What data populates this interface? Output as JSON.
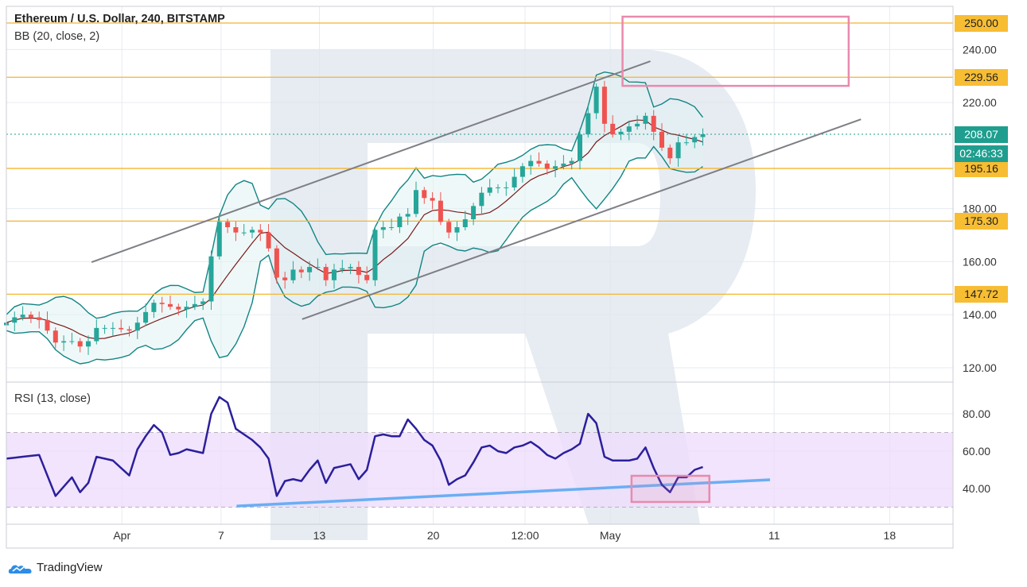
{
  "header": {
    "title": "Ethereum / U.S. Dollar, 240, BITSTAMP",
    "bb_label": "BB (20, close, 2)",
    "rsi_label": "RSI (13, close)"
  },
  "branding": {
    "name": "TradingView",
    "icon": "tradingview-cloud-icon"
  },
  "colors": {
    "up": "#26a69a",
    "down": "#ef5350",
    "bb": "#138484",
    "basis": "#7a1a1a",
    "level": "#f5b52e",
    "rsi": "#2b1f9c",
    "rsi_trend": "#6aaef5",
    "box": "#e88aad",
    "current": "#1f9e8f"
  },
  "chart_data": [
    {
      "type": "candlestick",
      "title": "Ethereum / U.S. Dollar, 240, BITSTAMP",
      "ylim": [
        110,
        258
      ],
      "interval_note": "closes sampled per half-day",
      "closes": [
        137,
        139,
        140,
        139,
        138,
        134,
        129.5,
        130,
        130,
        128,
        130,
        135,
        135,
        135,
        134.5,
        134,
        137,
        141,
        144.5,
        144,
        143,
        142,
        143,
        144,
        145,
        162,
        175,
        173,
        171,
        171,
        172,
        171,
        165,
        154,
        153,
        157,
        156,
        158,
        158,
        153,
        157,
        157.5,
        158,
        155,
        153,
        172,
        173,
        173,
        177,
        178,
        187,
        184,
        183,
        175,
        171,
        173,
        176,
        181,
        186,
        188,
        188,
        188,
        192,
        196,
        198,
        197,
        195,
        196,
        197,
        198,
        208,
        216,
        226,
        212,
        208,
        209,
        211,
        212,
        215,
        209,
        203,
        199,
        205,
        205,
        207,
        208.07
      ],
      "price_ticks": [
        240,
        220,
        180,
        160,
        140,
        120
      ],
      "levels": [
        {
          "value": 250.0,
          "label": "250.00"
        },
        {
          "value": 229.56,
          "label": "229.56"
        },
        {
          "value": 195.16,
          "label": "195.16"
        },
        {
          "value": 175.3,
          "label": "175.30"
        },
        {
          "value": 147.72,
          "label": "147.72"
        }
      ],
      "current": {
        "value": 208.07,
        "label": "208.07",
        "countdown": "02:46:33"
      },
      "indicator": {
        "name": "Bollinger Bands",
        "period": 20,
        "source": "close",
        "stddev": 2
      },
      "channel": [
        {
          "name": "upper",
          "from": [
            10.4,
            159.8
          ],
          "to": [
            78.6,
            235.6
          ]
        },
        {
          "name": "lower",
          "from": [
            36.1,
            138.3
          ],
          "to": [
            104.3,
            213.7
          ]
        }
      ],
      "target_box": {
        "from_index": 75.2,
        "to_index": 102.8,
        "top": 252.4,
        "bottom": 226.3
      },
      "x_ticks": [
        {
          "label": "Apr",
          "index": 14.1
        },
        {
          "label": "7",
          "index": 26.2
        },
        {
          "label": "13",
          "index": 38.2
        },
        {
          "label": "20",
          "index": 52.1
        },
        {
          "label": "12:00",
          "index": 63.3
        },
        {
          "label": "May",
          "index": 73.7
        },
        {
          "label": "11",
          "index": 93.7
        },
        {
          "label": "18",
          "index": 107.8
        }
      ]
    },
    {
      "type": "line",
      "title": "RSI (13, close)",
      "ylim": [
        20,
        98
      ],
      "values": [
        56,
        56.5,
        57,
        57.5,
        58,
        47,
        36,
        41,
        46,
        38,
        43,
        57,
        56,
        55,
        51,
        47,
        61,
        68,
        74,
        70,
        58,
        59,
        61,
        60,
        59,
        80,
        89,
        86,
        72,
        69,
        66,
        62,
        56,
        36,
        44,
        45,
        44,
        50,
        55,
        43,
        51,
        52,
        53,
        45,
        50,
        68,
        69,
        68,
        68,
        77,
        72,
        66,
        63,
        55,
        42,
        45,
        47,
        54,
        62,
        63,
        60,
        59,
        62,
        63,
        65,
        62,
        58,
        56,
        59,
        61,
        64,
        80,
        75,
        57,
        55,
        55,
        55,
        56,
        62,
        51,
        42,
        38,
        46,
        46,
        50,
        51.5
      ],
      "y_ticks": [
        {
          "value": 80,
          "label": "80.00"
        },
        {
          "value": 60,
          "label": "60.00"
        },
        {
          "value": 40,
          "label": "40.00"
        }
      ],
      "band": [
        30,
        70
      ],
      "trendline": {
        "from": [
          28.1,
          30.6
        ],
        "to": [
          93.2,
          44.7
        ]
      },
      "box": {
        "from_index": 76.3,
        "to_index": 85.8,
        "top": 46.8,
        "bottom": 32.8
      }
    }
  ]
}
